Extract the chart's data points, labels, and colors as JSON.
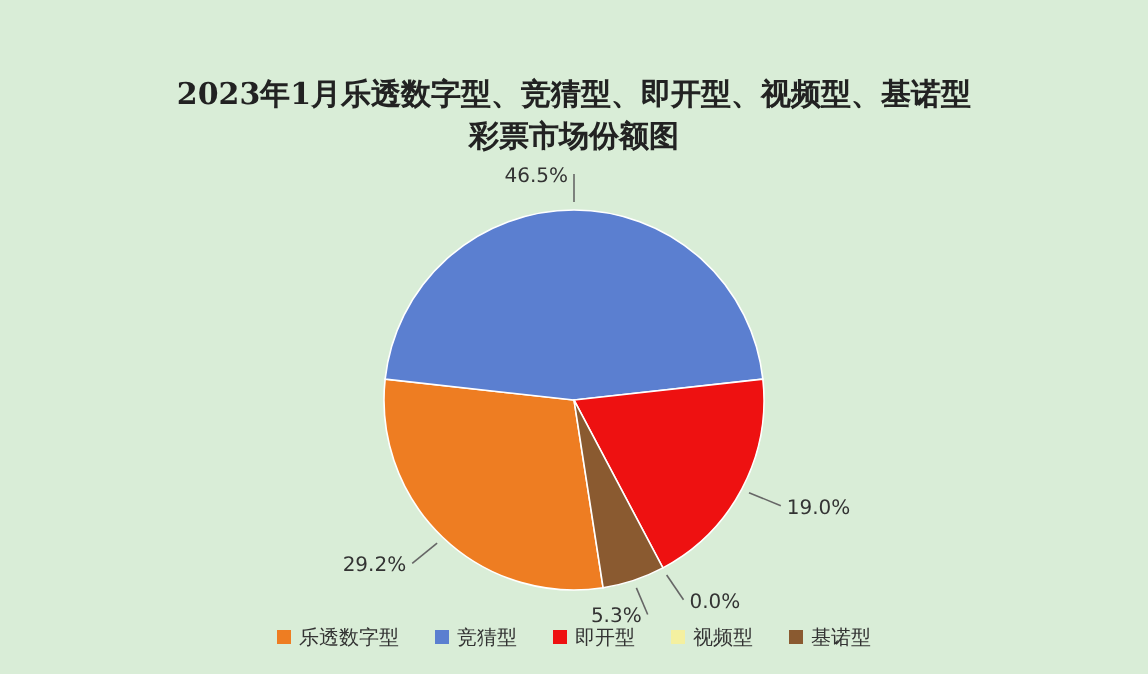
{
  "chart_data": {
    "type": "pie",
    "title": "2023年1月乐透数字型、竞猜型、即开型、视频型、基诺型彩票市场份额图",
    "categories": [
      "乐透数字型",
      "竞猜型",
      "即开型",
      "视频型",
      "基诺型"
    ],
    "values": [
      29.2,
      46.5,
      19.0,
      0.0,
      5.3
    ],
    "value_labels": [
      "29.2%",
      "46.5%",
      "19.0%",
      "0.0%",
      "5.3%"
    ],
    "colors": [
      "#ee7d22",
      "#5b7fd0",
      "#ee1111",
      "#f4f0a0",
      "#8a5a30"
    ],
    "legend": "bottom"
  }
}
